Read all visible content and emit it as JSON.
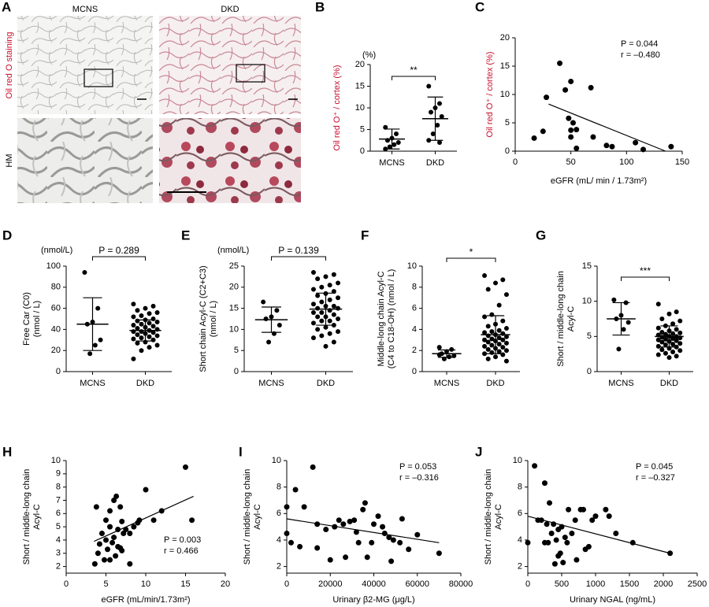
{
  "panel_a": {
    "label": "A",
    "columns": [
      "MCNS",
      "DKD"
    ],
    "rows": [
      "Oil red O staining",
      "HM"
    ]
  },
  "chart_data": [
    {
      "type": "dotplot",
      "label": "B",
      "unit": "(%)",
      "ylabel": "Oil red O⁺ / cortex (%)",
      "ylabel_color": "#c8102e",
      "categories": [
        "MCNS",
        "DKD"
      ],
      "ylim": [
        0,
        20
      ],
      "yticks": [
        0,
        5,
        10,
        15,
        20
      ],
      "significance": "**",
      "groups": [
        {
          "values": [
            5.5,
            4,
            3,
            2.5,
            2,
            1.5,
            1,
            0.5
          ],
          "mean": 2.8,
          "sd": 2.3
        },
        {
          "values": [
            15,
            11,
            10,
            9,
            8,
            6,
            4,
            2.5,
            2
          ],
          "mean": 7.5,
          "sd": 5
        }
      ]
    },
    {
      "type": "scatter",
      "label": "C",
      "ylabel": "Oil red O⁺ / cortex (%)",
      "ylabel_color": "#c8102e",
      "xlabel": "eGFR (mL/ min / 1.73m²)",
      "xlim": [
        0,
        150
      ],
      "xticks": [
        0,
        50,
        100,
        150
      ],
      "ylim": [
        0,
        20
      ],
      "yticks": [
        0,
        5,
        10,
        15,
        20
      ],
      "x": [
        17,
        25,
        28,
        40,
        45,
        50,
        48,
        52,
        50,
        55,
        50,
        55,
        68,
        70,
        82,
        87,
        108,
        115,
        140
      ],
      "y": [
        2.3,
        3.5,
        9.5,
        15.5,
        10.8,
        12.3,
        5.8,
        5,
        3.7,
        3.8,
        2.5,
        0.5,
        11.2,
        2.5,
        1,
        0.8,
        1.5,
        0.3,
        0.8
      ],
      "fit": {
        "x": [
          30,
          135
        ],
        "y": [
          8.3,
          0
        ]
      },
      "annotations": [
        "P = 0.044",
        "r = –0.480"
      ],
      "annotation_corner": "upper-right"
    },
    {
      "type": "dotplot",
      "label": "D",
      "unit": "(nmol/L)",
      "ylabel": [
        "Free Car (C0)",
        "(nmol / L)"
      ],
      "categories": [
        "MCNS",
        "DKD"
      ],
      "ylim": [
        0,
        100
      ],
      "yticks": [
        0,
        20,
        40,
        60,
        80,
        100
      ],
      "significance": "P = 0.289",
      "groups": [
        {
          "values": [
            94,
            60,
            47,
            45,
            30,
            25,
            17
          ],
          "mean": 45,
          "sd": 25
        },
        {
          "values": [
            64,
            62,
            60,
            58,
            56,
            55,
            53,
            52,
            50,
            49,
            48,
            47,
            46,
            45,
            44,
            43,
            42,
            41,
            40,
            39,
            38,
            38,
            37,
            36,
            35,
            34,
            33,
            32,
            31,
            30,
            28,
            27,
            25,
            23,
            20,
            12
          ],
          "mean": 39,
          "sd": 10
        }
      ]
    },
    {
      "type": "dotplot",
      "label": "E",
      "unit": "(nmol/L)",
      "ylabel": [
        "Short chain Acyl-C (C2+C3)",
        "(nmol / L)"
      ],
      "categories": [
        "MCNS",
        "DKD"
      ],
      "ylim": [
        0,
        25
      ],
      "yticks": [
        0,
        5,
        10,
        15,
        20,
        25
      ],
      "significance": "P = 0.139",
      "groups": [
        {
          "values": [
            16.5,
            14.5,
            13,
            12.5,
            11,
            9,
            7
          ],
          "mean": 12.3,
          "sd": 3
        },
        {
          "values": [
            23.5,
            23,
            22.5,
            22,
            21,
            20.5,
            20,
            19.5,
            19,
            18.5,
            18,
            17.5,
            17,
            16.5,
            16,
            15.5,
            15.5,
            15,
            15,
            14.5,
            14,
            14,
            13.5,
            13,
            13,
            12.5,
            12,
            12,
            11.5,
            11,
            10.5,
            10,
            9.5,
            9,
            8.5,
            8,
            7,
            6
          ],
          "mean": 14.8,
          "sd": 3.8
        }
      ]
    },
    {
      "type": "dotplot",
      "label": "F",
      "ylabel": [
        "Middle-long chain Acyl-C",
        "(C4 to C18-OH) (nmol / L)"
      ],
      "categories": [
        "MCNS",
        "DKD"
      ],
      "ylim": [
        0,
        10
      ],
      "yticks": [
        0,
        2,
        4,
        6,
        8,
        10
      ],
      "significance": "*",
      "groups": [
        {
          "values": [
            2.3,
            2.1,
            1.9,
            1.7,
            1.5,
            1.4,
            1.2,
            1.6
          ],
          "mean": 1.7,
          "sd": 0.35
        },
        {
          "values": [
            9.1,
            8.7,
            8.4,
            7.8,
            7.3,
            6.3,
            5.4,
            5.2,
            4.8,
            4.5,
            4.3,
            4.1,
            3.9,
            3.8,
            3.7,
            3.6,
            3.5,
            3.4,
            3.3,
            3.2,
            3.1,
            3,
            3,
            2.9,
            2.8,
            2.7,
            2.6,
            2.5,
            2.4,
            2.3,
            2.2,
            2.1,
            2,
            1.9,
            1.8,
            1.7,
            1.6,
            1.4,
            1.2,
            1
          ],
          "mean": 3.5,
          "sd": 1.8
        }
      ]
    },
    {
      "type": "dotplot",
      "label": "G",
      "ylabel": [
        "Short / middle-long chain",
        "Acyl-C"
      ],
      "categories": [
        "MCNS",
        "DKD"
      ],
      "ylim": [
        0,
        15
      ],
      "yticks": [
        0,
        5,
        10,
        15
      ],
      "significance": "***",
      "groups": [
        {
          "values": [
            10.2,
            9.8,
            8,
            7.5,
            7,
            6,
            3.2
          ],
          "mean": 7.5,
          "sd": 2.3
        },
        {
          "values": [
            9.6,
            8.5,
            8.2,
            7.5,
            7.2,
            6.8,
            6.5,
            6.2,
            6,
            5.8,
            5.6,
            5.5,
            5.4,
            5.3,
            5.2,
            5,
            5,
            4.9,
            4.8,
            4.7,
            4.6,
            4.5,
            4.4,
            4.3,
            4.2,
            4,
            3.9,
            3.8,
            3.6,
            3.5,
            3.3,
            3.1,
            3,
            2.8,
            2.6,
            2.4,
            2.2,
            2
          ],
          "mean": 5,
          "sd": 1.5
        }
      ]
    },
    {
      "type": "scatter",
      "label": "H",
      "ylabel": [
        "Short / middle-long chain",
        "Acyl-C"
      ],
      "xlabel": "eGFR (mL/min/1.73m²)",
      "xlim": [
        0,
        20
      ],
      "xticks": [
        0,
        5,
        10,
        15,
        20
      ],
      "ylim": [
        1.5,
        10
      ],
      "yticks": [
        2,
        3,
        4,
        5,
        6,
        7,
        8,
        9,
        10
      ],
      "x": [
        3.6,
        3.8,
        4,
        4.2,
        4.5,
        4.8,
        5,
        5,
        5.2,
        5.5,
        5.5,
        5.8,
        6,
        6,
        6.2,
        6.3,
        6.5,
        6.5,
        6.8,
        7,
        7,
        7.2,
        7.5,
        8,
        8,
        8.5,
        9,
        9.2,
        10,
        11,
        12,
        15,
        15.8,
        5.5,
        6.8
      ],
      "y": [
        2.2,
        6.5,
        3,
        3.7,
        4.5,
        2.5,
        5.5,
        4,
        3.3,
        6.2,
        5,
        3.8,
        7,
        4.2,
        2.8,
        7.3,
        4.8,
        3.5,
        6.5,
        3.2,
        5.4,
        4.5,
        4.8,
        2.2,
        4.5,
        5,
        5.3,
        5.5,
        7.8,
        5.5,
        6.2,
        9.5,
        5.5,
        2.5,
        3.4
      ],
      "fit": {
        "x": [
          3.5,
          16
        ],
        "y": [
          3.9,
          7.3
        ]
      },
      "annotations": [
        "P = 0.003",
        "r = 0.466"
      ],
      "annotation_corner": "lower-right"
    },
    {
      "type": "scatter",
      "label": "I",
      "ylabel": [
        "Short / middle-long chain",
        "Acyl-C"
      ],
      "xlabel": "Urinary β2-MG (μg/L)",
      "xlim": [
        0,
        80000
      ],
      "xticks": [
        0,
        20000,
        40000,
        60000,
        80000
      ],
      "ylim": [
        1.5,
        10
      ],
      "yticks": [
        2,
        4,
        6,
        8,
        10
      ],
      "x": [
        0,
        0,
        2000,
        4000,
        6000,
        8000,
        12000,
        14000,
        18000,
        20000,
        22000,
        24000,
        26000,
        27000,
        29000,
        31000,
        32000,
        33000,
        35000,
        36000,
        37000,
        39000,
        40000,
        42000,
        44000,
        45000,
        47000,
        48000,
        49000,
        52000,
        53000,
        56000,
        60000,
        70000,
        14000
      ],
      "y": [
        6.5,
        4.5,
        3.8,
        7.8,
        3.5,
        6.5,
        9.5,
        5.2,
        4.8,
        2.5,
        5,
        5.5,
        5.2,
        2.7,
        5.4,
        5.5,
        4.6,
        3.8,
        6.3,
        6.8,
        2.7,
        3.8,
        5.2,
        5.8,
        5,
        4.5,
        4.2,
        2.4,
        4,
        3.8,
        5.6,
        3.3,
        4.4,
        3,
        3.4
      ],
      "fit": {
        "x": [
          0,
          70000
        ],
        "y": [
          5.6,
          3.8
        ]
      },
      "annotations": [
        "P = 0.053",
        "r = –0.316"
      ],
      "annotation_corner": "upper-right"
    },
    {
      "type": "scatter",
      "label": "J",
      "ylabel": [
        "Short / middle-long chain",
        "Acyl-C"
      ],
      "xlabel": "Urinary NGAL (ng/mL)",
      "xlim": [
        0,
        2500
      ],
      "xticks": [
        0,
        500,
        1000,
        1500,
        2000,
        2500
      ],
      "ylim": [
        1.5,
        10
      ],
      "yticks": [
        2,
        4,
        6,
        8,
        10
      ],
      "x": [
        0,
        100,
        150,
        200,
        250,
        280,
        300,
        320,
        350,
        380,
        400,
        420,
        450,
        480,
        500,
        520,
        550,
        580,
        600,
        650,
        700,
        720,
        780,
        820,
        850,
        900,
        950,
        1000,
        1150,
        1200,
        1300,
        1550,
        2100,
        250,
        450
      ],
      "y": [
        3.8,
        9.6,
        5.5,
        5.5,
        8.3,
        5.2,
        3.8,
        6.8,
        4.5,
        5.2,
        2.2,
        4,
        4.8,
        3,
        5,
        2.3,
        4.2,
        3.8,
        6.3,
        4.5,
        5.5,
        2.5,
        6.3,
        6.3,
        3.3,
        3.5,
        5.5,
        5.8,
        6.3,
        5.8,
        4.5,
        3.8,
        3,
        3.8,
        2.8
      ],
      "fit": {
        "x": [
          0,
          2100
        ],
        "y": [
          5.8,
          3
        ]
      },
      "annotations": [
        "P = 0.045",
        "r = –0.327"
      ],
      "annotation_corner": "upper-right"
    }
  ]
}
